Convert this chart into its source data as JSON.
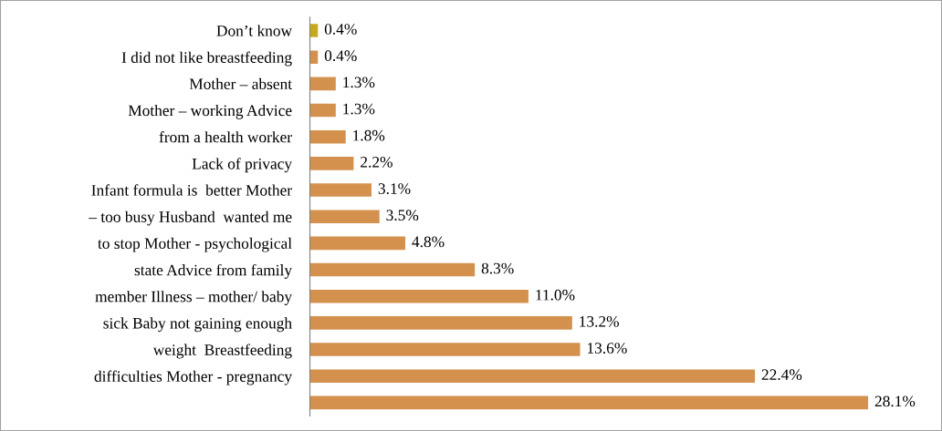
{
  "chart_data": {
    "type": "bar",
    "orientation": "horizontal",
    "categories": [
      "Don’t know",
      "I did not like breastfeeding",
      "Mother – absent",
      "Mother – working Advice",
      "from a health worker",
      "Lack of privacy",
      "Infant formula is  better Mother",
      "– too busy Husband  wanted me",
      "to stop Mother - psychological",
      "state Advice from family",
      "member Illness – mother/ baby",
      "sick Baby not gaining enough",
      "weight  Breastfeeding",
      "difficulties Mother - pregnancy",
      null
    ],
    "values": [
      0.4,
      0.4,
      1.3,
      1.3,
      1.8,
      2.2,
      3.1,
      3.5,
      4.8,
      8.3,
      11.0,
      13.2,
      13.6,
      22.4,
      28.1
    ],
    "value_labels": [
      "0.4%",
      "0.4%",
      "1.3%",
      "1.3%",
      "1.8%",
      "2.2%",
      "3.1%",
      "3.5%",
      "4.8%",
      "8.3%",
      "11.0%",
      "13.2%",
      "13.6%",
      "22.4%",
      "28.1%"
    ],
    "colors": [
      "#c8a81c",
      "#d4914e",
      "#d4914e",
      "#d4914e",
      "#d4914e",
      "#d4914e",
      "#d4914e",
      "#d4914e",
      "#d4914e",
      "#d4914e",
      "#d4914e",
      "#d4914e",
      "#d4914e",
      "#d4914e",
      "#d4914e"
    ],
    "grid": false,
    "legend": false
  }
}
